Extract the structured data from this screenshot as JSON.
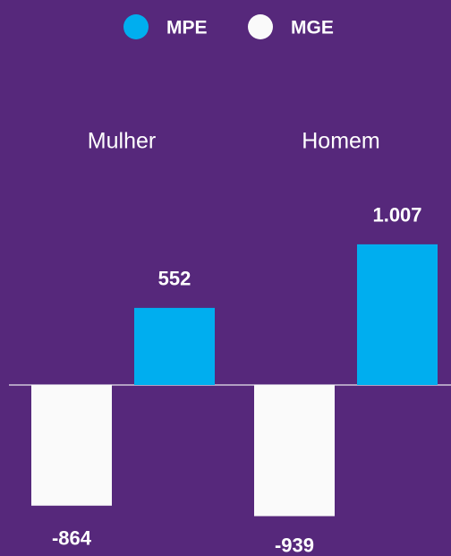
{
  "chart_data": {
    "type": "bar",
    "categories": [
      "Mulher",
      "Homem"
    ],
    "series": [
      {
        "name": "MPE",
        "color": "#00aeef",
        "values": [
          552,
          1007
        ],
        "value_labels": [
          "552",
          "1.007"
        ]
      },
      {
        "name": "MGE",
        "color": "#fafafa",
        "values": [
          -864,
          -939
        ],
        "value_labels": [
          "-864",
          "-939"
        ]
      }
    ]
  }
}
